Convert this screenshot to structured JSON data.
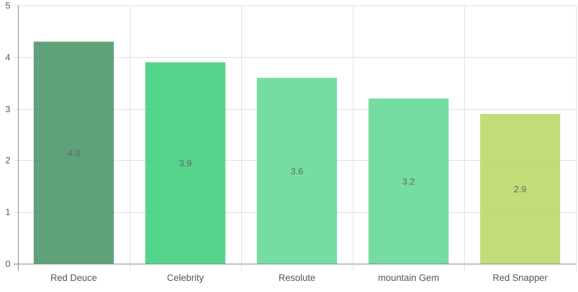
{
  "chart_data": {
    "type": "bar",
    "categories": [
      "Red Deuce",
      "Celebrity",
      "Resolute",
      "mountain Gem",
      "Red Snapper"
    ],
    "values": [
      4.3,
      3.9,
      3.6,
      3.2,
      2.9
    ],
    "data_labels": [
      "4.3",
      "3.9",
      "3.6",
      "3.2",
      "2.9"
    ],
    "bar_colors": [
      "#3c8c5c",
      "#2ecc71",
      "#58d68d",
      "#58d68d",
      "#b5d55a"
    ],
    "bar_opacity": 0.82,
    "ylim": [
      0,
      5
    ],
    "yticks": [
      "0",
      "1",
      "2",
      "3",
      "4",
      "5"
    ],
    "ytick_values": [
      0,
      1,
      2,
      3,
      4,
      5
    ],
    "grid": true,
    "grid_color": "#e0e0e0",
    "axis_color": "#888888",
    "tick_label_color": "#555555",
    "data_label_color": "#666666",
    "legend": "none"
  }
}
